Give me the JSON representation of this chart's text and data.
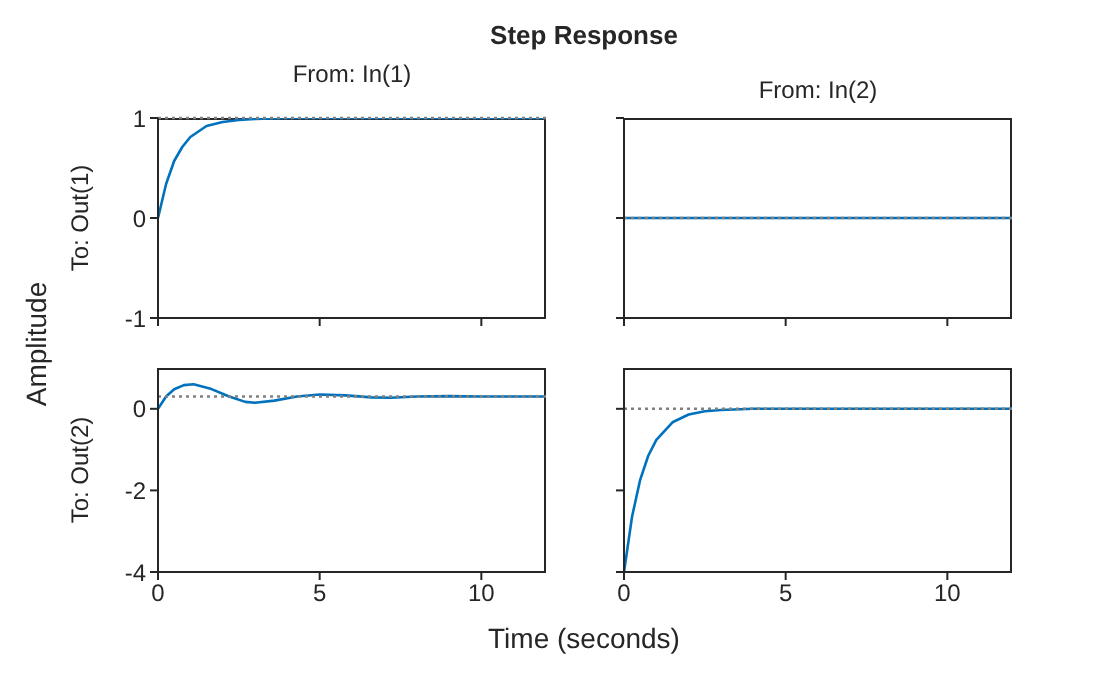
{
  "chart_data": [
    {
      "type": "line",
      "title": "From: In(1)",
      "ylabel": "To: Out(1)",
      "annotations": [
        "Step Response",
        "Amplitude",
        "Time (seconds)"
      ],
      "x": [
        0,
        0.25,
        0.5,
        0.75,
        1,
        1.5,
        2,
        2.5,
        3,
        4,
        5,
        6,
        8,
        10,
        12
      ],
      "series": [
        {
          "color": "#0072bd",
          "values": [
            0,
            0.34,
            0.57,
            0.71,
            0.81,
            0.92,
            0.96,
            0.98,
            0.99,
            1,
            1,
            1,
            1,
            1,
            1
          ]
        }
      ],
      "xlim": [
        0,
        12
      ],
      "xticks": [
        {
          "value": 0,
          "label": null
        },
        {
          "value": 5,
          "label": null
        },
        {
          "value": 10,
          "label": null
        }
      ],
      "ylim": [
        -1,
        1
      ],
      "yticks": [
        -1,
        0,
        1
      ],
      "tick_labels": "y",
      "ref_lines": [
        {
          "axis": "y",
          "value": 1,
          "color": "#808080",
          "line_style": "dotted"
        }
      ]
    },
    {
      "type": "line",
      "title": "From: In(2)",
      "x": [
        0,
        12
      ],
      "series": [
        {
          "color": "#0072bd",
          "values": [
            0,
            0
          ]
        }
      ],
      "xlim": [
        0,
        12
      ],
      "xticks": [
        {
          "value": 0,
          "label": null
        },
        {
          "value": 5,
          "label": null
        },
        {
          "value": 10,
          "label": null
        }
      ],
      "ylim": [
        -1,
        1
      ],
      "yticks": [
        {
          "value": -1,
          "label": null
        },
        {
          "value": 0,
          "label": null
        },
        {
          "value": 1,
          "label": null
        }
      ],
      "tick_labels": false,
      "ref_lines": [
        {
          "axis": "y",
          "value": 0,
          "color": "#808080",
          "line_style": "dotted"
        }
      ]
    },
    {
      "type": "line",
      "ylabel": "To: Out(2)",
      "x": [
        0,
        0.25,
        0.5,
        0.8,
        1.1,
        1.6,
        2.2,
        2.7,
        3,
        3.6,
        4.3,
        5,
        5.8,
        6.6,
        7.2,
        8,
        9,
        10,
        12
      ],
      "series": [
        {
          "color": "#0072bd",
          "values": [
            0,
            0.3,
            0.48,
            0.58,
            0.6,
            0.5,
            0.3,
            0.17,
            0.15,
            0.2,
            0.3,
            0.35,
            0.33,
            0.28,
            0.27,
            0.3,
            0.31,
            0.3,
            0.3
          ]
        }
      ],
      "xlim": [
        0,
        12
      ],
      "xticks": [
        0,
        5,
        10
      ],
      "ylim": [
        -4,
        1
      ],
      "yticks": [
        -4,
        -2,
        0
      ],
      "ref_lines": [
        {
          "axis": "y",
          "value": 0.3,
          "color": "#808080",
          "line_style": "dotted"
        }
      ]
    },
    {
      "type": "line",
      "x": [
        0,
        0.25,
        0.5,
        0.75,
        1,
        1.5,
        2,
        2.5,
        3,
        4,
        5,
        6,
        8,
        10,
        12
      ],
      "series": [
        {
          "color": "#0072bd",
          "values": [
            -4,
            -2.64,
            -1.74,
            -1.15,
            -0.76,
            -0.33,
            -0.14,
            -0.06,
            -0.03,
            0,
            0,
            0,
            0,
            0,
            0
          ]
        }
      ],
      "xlim": [
        0,
        12
      ],
      "xticks": [
        0,
        5,
        10
      ],
      "ylim": [
        -4,
        1
      ],
      "yticks": [
        {
          "value": -4,
          "label": null
        },
        {
          "value": -2,
          "label": null
        },
        {
          "value": 0,
          "label": null
        }
      ],
      "tick_labels": "x",
      "ref_lines": [
        {
          "axis": "y",
          "value": 0,
          "color": "#808080",
          "line_style": "dotted"
        }
      ]
    }
  ]
}
